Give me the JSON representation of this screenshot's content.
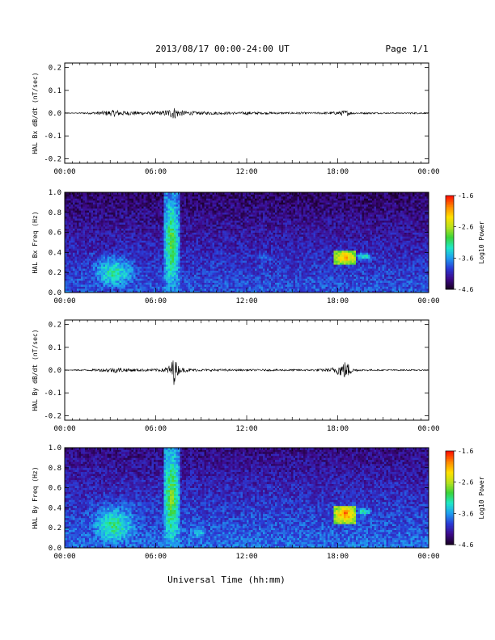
{
  "header": {
    "title": "2013/08/17  00:00-24:00 UT",
    "page": "Page 1/1"
  },
  "xlabel": "Universal Time (hh:mm)",
  "chart_data": [
    {
      "type": "line",
      "ylabel": "HAL Bx dB/dt (nT/sec)",
      "xlim": [
        0,
        24
      ],
      "ylim": [
        -0.22,
        0.22
      ],
      "yticks": [
        "0.2",
        "0.1",
        "0.0",
        "-0.1",
        "-0.2"
      ],
      "ytick_values": [
        0.2,
        0.1,
        0.0,
        -0.1,
        -0.2
      ],
      "xticks": [
        "00:00",
        "06:00",
        "12:00",
        "18:00",
        "00:00"
      ],
      "series": [
        {
          "color": "#000000",
          "x": [
            0,
            0.5,
            1,
            1.5,
            2,
            2.5,
            3,
            3.3,
            3.6,
            4,
            4.5,
            5,
            5.5,
            6,
            6.5,
            7,
            7.2,
            7.4,
            7.6,
            8,
            8.5,
            9,
            9.5,
            10,
            10.5,
            11,
            11.5,
            12,
            12.5,
            13,
            13.5,
            14,
            14.5,
            15,
            15.5,
            16,
            16.5,
            17,
            17.5,
            18,
            18.5,
            18.8,
            19,
            19.5,
            20,
            20.5,
            21,
            21.5,
            22,
            22.5,
            23,
            23.5,
            24
          ],
          "amplitude": [
            0.002,
            0.002,
            0.003,
            0.004,
            0.006,
            0.009,
            0.012,
            0.016,
            0.012,
            0.01,
            0.009,
            0.008,
            0.007,
            0.008,
            0.01,
            0.02,
            0.028,
            0.02,
            0.014,
            0.01,
            0.008,
            0.007,
            0.007,
            0.007,
            0.006,
            0.006,
            0.005,
            0.008,
            0.006,
            0.005,
            0.005,
            0.005,
            0.004,
            0.005,
            0.005,
            0.004,
            0.004,
            0.005,
            0.006,
            0.008,
            0.014,
            0.008,
            0.005,
            0.004,
            0.004,
            0.004,
            0.003,
            0.003,
            0.003,
            0.003,
            0.004,
            0.004,
            0.002
          ]
        }
      ]
    },
    {
      "type": "heatmap",
      "ylabel": "HAL Bx Freq (Hz)",
      "xlim": [
        0,
        24
      ],
      "ylim": [
        0,
        1.0
      ],
      "yticks": [
        "1.0",
        "0.8",
        "0.6",
        "0.4",
        "0.2",
        "0.0"
      ],
      "ytick_values": [
        1.0,
        0.8,
        0.6,
        0.4,
        0.2,
        0.0
      ],
      "xticks": [
        "00:00",
        "06:00",
        "12:00",
        "18:00",
        "00:00"
      ],
      "colorbar": {
        "label": "Log10 Power",
        "min": -4.6,
        "max": -1.6,
        "ticks": [
          "-1.6",
          "-2.6",
          "-3.6",
          "-4.6"
        ],
        "tick_values": [
          -1.6,
          -2.6,
          -3.6,
          -4.6
        ],
        "colors": [
          "#1a0026",
          "#3d0a8c",
          "#2a3bd6",
          "#1f9ef0",
          "#1fe8c8",
          "#3ad43a",
          "#b8e21e",
          "#ffe000",
          "#ff8a00",
          "#ff1500"
        ]
      },
      "features": [
        {
          "label": "background",
          "x_range": [
            0,
            24
          ],
          "f_range": [
            0,
            1.0
          ],
          "log_power": -4.2
        },
        {
          "label": "enhancement",
          "x_range": [
            1.5,
            5.0
          ],
          "f_range": [
            0,
            0.4
          ],
          "log_power": -3.1
        },
        {
          "label": "burst",
          "x_range": [
            6.5,
            7.6
          ],
          "f_range": [
            0,
            1.0
          ],
          "log_power": -2.8
        },
        {
          "label": "enhancement",
          "x_range": [
            12.0,
            14.5
          ],
          "f_range": [
            0.2,
            0.5
          ],
          "log_power": -3.7
        },
        {
          "label": "emission",
          "x_range": [
            17.8,
            19.2
          ],
          "f_range": [
            0.28,
            0.42
          ],
          "log_power": -1.9
        },
        {
          "label": "emission",
          "x_range": [
            19.2,
            20.3
          ],
          "f_range": [
            0.33,
            0.4
          ],
          "log_power": -3.0
        }
      ]
    },
    {
      "type": "line",
      "ylabel": "HAL By dB/dt (nT/sec)",
      "xlim": [
        0,
        24
      ],
      "ylim": [
        -0.22,
        0.22
      ],
      "yticks": [
        "0.2",
        "0.1",
        "0.0",
        "-0.1",
        "-0.2"
      ],
      "ytick_values": [
        0.2,
        0.1,
        0.0,
        -0.1,
        -0.2
      ],
      "xticks": [
        "00:00",
        "06:00",
        "12:00",
        "18:00",
        "00:00"
      ],
      "series": [
        {
          "color": "#000000",
          "x": [
            0,
            0.5,
            1,
            1.5,
            2,
            2.5,
            3,
            3.3,
            3.6,
            4,
            4.5,
            5,
            5.5,
            6,
            6.5,
            7,
            7.2,
            7.4,
            7.6,
            8,
            8.5,
            9,
            9.5,
            10,
            10.5,
            11,
            11.5,
            12,
            12.5,
            13,
            13.5,
            14,
            14.5,
            15,
            15.5,
            16,
            16.5,
            17,
            17.5,
            18,
            18.5,
            18.8,
            19,
            19.5,
            20,
            20.5,
            21,
            21.5,
            22,
            22.5,
            23,
            23.5,
            24
          ],
          "amplitude": [
            0.002,
            0.002,
            0.003,
            0.004,
            0.005,
            0.007,
            0.01,
            0.012,
            0.01,
            0.008,
            0.007,
            0.006,
            0.006,
            0.006,
            0.008,
            0.025,
            0.065,
            0.03,
            0.012,
            0.008,
            0.006,
            0.005,
            0.005,
            0.005,
            0.005,
            0.004,
            0.004,
            0.004,
            0.004,
            0.004,
            0.004,
            0.004,
            0.004,
            0.004,
            0.004,
            0.004,
            0.005,
            0.006,
            0.008,
            0.02,
            0.04,
            0.025,
            0.008,
            0.004,
            0.004,
            0.003,
            0.003,
            0.003,
            0.003,
            0.003,
            0.003,
            0.003,
            0.002
          ]
        }
      ]
    },
    {
      "type": "heatmap",
      "ylabel": "HAL By Freq (Hz)",
      "xlim": [
        0,
        24
      ],
      "ylim": [
        0,
        1.0
      ],
      "yticks": [
        "1.0",
        "0.8",
        "0.6",
        "0.4",
        "0.2",
        "0.0"
      ],
      "ytick_values": [
        1.0,
        0.8,
        0.6,
        0.4,
        0.2,
        0.0
      ],
      "xticks": [
        "00:00",
        "06:00",
        "12:00",
        "18:00",
        "00:00"
      ],
      "colorbar": {
        "label": "Log10 Power",
        "min": -4.6,
        "max": -1.6,
        "ticks": [
          "-1.6",
          "-2.6",
          "-3.6",
          "-4.6"
        ],
        "tick_values": [
          -1.6,
          -2.6,
          -3.6,
          -4.6
        ],
        "colors": [
          "#1a0026",
          "#3d0a8c",
          "#2a3bd6",
          "#1f9ef0",
          "#1fe8c8",
          "#3ad43a",
          "#b8e21e",
          "#ffe000",
          "#ff8a00",
          "#ff1500"
        ]
      },
      "features": [
        {
          "label": "background",
          "x_range": [
            0,
            24
          ],
          "f_range": [
            0,
            1.0
          ],
          "log_power": -4.1
        },
        {
          "label": "enhancement",
          "x_range": [
            1.5,
            5.0
          ],
          "f_range": [
            0,
            0.45
          ],
          "log_power": -3.0
        },
        {
          "label": "burst",
          "x_range": [
            6.5,
            7.6
          ],
          "f_range": [
            0,
            1.0
          ],
          "log_power": -2.7
        },
        {
          "label": "enhancement",
          "x_range": [
            7.6,
            10.0
          ],
          "f_range": [
            0,
            0.3
          ],
          "log_power": -3.4
        },
        {
          "label": "emission",
          "x_range": [
            17.8,
            19.2
          ],
          "f_range": [
            0.25,
            0.42
          ],
          "log_power": -1.8
        },
        {
          "label": "emission",
          "x_range": [
            19.2,
            20.3
          ],
          "f_range": [
            0.32,
            0.4
          ],
          "log_power": -3.0
        }
      ]
    }
  ]
}
